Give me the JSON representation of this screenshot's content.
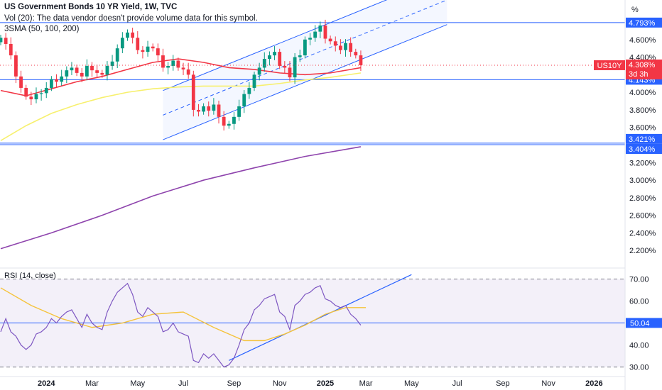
{
  "header": {
    "title": "US Government Bonds 10 YR Yield, 1W, TVC",
    "vol_text": "Vol (20): The data vendor doesn't provide volume data for this symbol.",
    "sma_text": "3SMA (50, 100, 200)",
    "rsi_label": "RSI (14, close)",
    "percent_unit": "%"
  },
  "price_tag": {
    "symbol": "US10Y",
    "value": "4.308%",
    "countdown": "3d 3h"
  },
  "colors": {
    "up": "#089981",
    "down": "#f23645",
    "sma50": "#f23645",
    "sma100": "#f7f06e",
    "sma200": "#8e44ad",
    "channel": "#2962ff",
    "hline": "#2962ff",
    "rsi": "#7e57c2",
    "rsi_ma": "#f5c33b",
    "axis_text": "#131722"
  },
  "chart_data": [
    {
      "type": "candlestick",
      "title": "US Government Bonds 10 YR Yield, 1W, TVC",
      "ylim": [
        2.0,
        5.05
      ],
      "y_ticks": [
        "2.200%",
        "2.400%",
        "2.600%",
        "2.800%",
        "3.000%",
        "3.200%",
        "3.600%",
        "3.800%",
        "4.000%",
        "4.400%",
        "4.600%"
      ],
      "x_ticks": [
        {
          "label": "2024",
          "i": 9,
          "bold": true
        },
        {
          "label": "Mar",
          "i": 18
        },
        {
          "label": "May",
          "i": 27
        },
        {
          "label": "Jul",
          "i": 36
        },
        {
          "label": "Sep",
          "i": 46
        },
        {
          "label": "Nov",
          "i": 55
        },
        {
          "label": "2025",
          "i": 64,
          "bold": true
        },
        {
          "label": "Mar",
          "i": 72
        },
        {
          "label": "May",
          "i": 81
        },
        {
          "label": "Jul",
          "i": 90
        },
        {
          "label": "Sep",
          "i": 99
        },
        {
          "label": "Nov",
          "i": 108
        },
        {
          "label": "2026",
          "i": 117,
          "bold": true
        }
      ],
      "closes": [
        4.62,
        4.55,
        4.42,
        4.18,
        4.05,
        3.95,
        3.92,
        3.98,
        3.99,
        4.05,
        4.15,
        4.12,
        4.18,
        4.25,
        4.28,
        4.22,
        4.18,
        4.3,
        4.25,
        4.22,
        4.2,
        4.3,
        4.35,
        4.5,
        4.62,
        4.68,
        4.62,
        4.48,
        4.46,
        4.52,
        4.5,
        4.42,
        4.28,
        4.3,
        4.36,
        4.28,
        4.26,
        4.2,
        3.8,
        3.78,
        3.84,
        3.79,
        3.86,
        3.72,
        3.62,
        3.64,
        3.72,
        3.84,
        3.98,
        4.05,
        4.2,
        4.28,
        4.38,
        4.42,
        4.46,
        4.3,
        4.28,
        4.17,
        4.4,
        4.42,
        4.6,
        4.62,
        4.69,
        4.76,
        4.61,
        4.58,
        4.53,
        4.48,
        4.56,
        4.46,
        4.42,
        4.308
      ],
      "horizontal_levels": [
        {
          "value": 4.793,
          "label": "4.793%"
        },
        {
          "value": 4.143,
          "label": "4.143%"
        },
        {
          "value": 3.421,
          "label": "3.421%"
        },
        {
          "value": 3.404,
          "label": "3.404%"
        }
      ],
      "series": [
        {
          "name": "SMA 50",
          "values": [
            [
              0,
              4.02
            ],
            [
              5,
              3.96
            ],
            [
              10,
              4.04
            ],
            [
              15,
              4.12
            ],
            [
              20,
              4.18
            ],
            [
              25,
              4.26
            ],
            [
              30,
              4.34
            ],
            [
              35,
              4.38
            ],
            [
              40,
              4.34
            ],
            [
              45,
              4.28
            ],
            [
              50,
              4.26
            ],
            [
              55,
              4.22
            ],
            [
              60,
              4.2
            ],
            [
              65,
              4.22
            ],
            [
              71,
              4.28
            ]
          ]
        },
        {
          "name": "SMA 100",
          "values": [
            [
              0,
              3.45
            ],
            [
              5,
              3.62
            ],
            [
              10,
              3.76
            ],
            [
              15,
              3.86
            ],
            [
              20,
              3.94
            ],
            [
              25,
              4.0
            ],
            [
              30,
              4.04
            ],
            [
              35,
              4.06
            ],
            [
              40,
              4.07
            ],
            [
              45,
              4.07
            ],
            [
              50,
              4.07
            ],
            [
              55,
              4.1
            ],
            [
              60,
              4.14
            ],
            [
              65,
              4.17
            ],
            [
              71,
              4.22
            ]
          ]
        },
        {
          "name": "SMA 200",
          "values": [
            [
              0,
              2.22
            ],
            [
              10,
              2.4
            ],
            [
              20,
              2.6
            ],
            [
              30,
              2.82
            ],
            [
              40,
              3.0
            ],
            [
              50,
              3.14
            ],
            [
              60,
              3.27
            ],
            [
              71,
              3.38
            ]
          ]
        }
      ]
    },
    {
      "type": "line",
      "title": "RSI (14, close)",
      "ylim": [
        26,
        75
      ],
      "y_ticks": [
        "70.00",
        "60.00",
        "40.00",
        "30.00"
      ],
      "levels": [
        {
          "value": 50.04,
          "label": "50.04"
        }
      ],
      "series": [
        {
          "name": "RSI",
          "values": [
            46,
            52,
            46,
            44,
            40,
            38,
            40,
            45,
            46,
            48,
            52,
            50,
            53,
            55,
            56,
            52,
            48,
            54,
            50,
            48,
            47,
            55,
            60,
            64,
            66,
            68,
            63,
            55,
            53,
            57,
            55,
            53,
            46,
            47,
            50,
            46,
            45,
            44,
            33,
            32,
            36,
            34,
            36,
            33,
            30,
            31,
            34,
            40,
            47,
            50,
            56,
            58,
            61,
            62,
            63,
            55,
            53,
            47,
            58,
            60,
            63,
            64,
            66,
            67,
            61,
            60,
            58,
            57,
            58,
            54,
            52,
            49
          ]
        },
        {
          "name": "RSI MA",
          "values": [
            [
              0,
              66
            ],
            [
              6,
              58
            ],
            [
              12,
              52
            ],
            [
              18,
              48
            ],
            [
              24,
              50
            ],
            [
              30,
              54
            ],
            [
              36,
              55
            ],
            [
              42,
              48
            ],
            [
              48,
              42
            ],
            [
              52,
              42
            ],
            [
              56,
              45
            ],
            [
              60,
              49
            ],
            [
              64,
              54
            ],
            [
              68,
              57
            ],
            [
              72,
              57
            ]
          ]
        }
      ]
    }
  ]
}
